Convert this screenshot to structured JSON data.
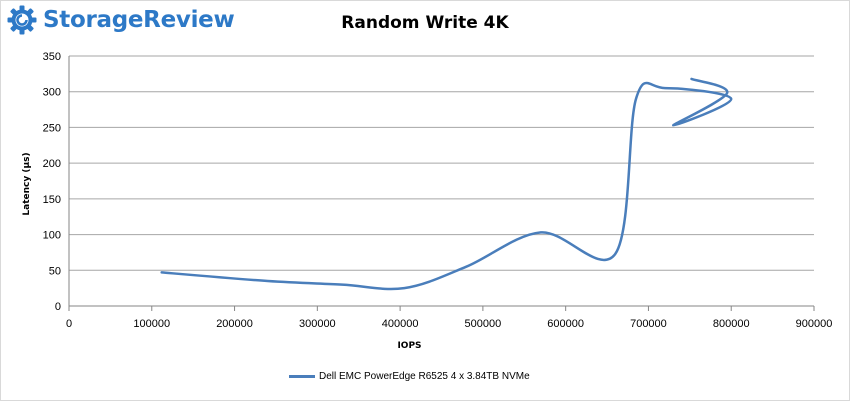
{
  "logo": {
    "text": "StorageReview",
    "icon": "storagereview-gear-icon",
    "color": "#2d79c7"
  },
  "chart_data": {
    "type": "line",
    "title": "Random Write 4K",
    "xlabel": "IOPS",
    "ylabel": "Latency (µs)",
    "xlim": [
      0,
      900000
    ],
    "ylim": [
      0,
      350
    ],
    "x_ticks": [
      0,
      100000,
      200000,
      300000,
      400000,
      500000,
      600000,
      700000,
      800000,
      900000
    ],
    "y_ticks": [
      0,
      50,
      100,
      150,
      200,
      250,
      300,
      350
    ],
    "grid": true,
    "legend_position": "bottom",
    "series": [
      {
        "name": "Dell EMC PowerEdge R6525 4 x 3.84TB NVMe",
        "color": "#4a7ebb",
        "points": [
          [
            112000,
            47
          ],
          [
            240000,
            35
          ],
          [
            330000,
            30
          ],
          [
            405000,
            25
          ],
          [
            480000,
            55
          ],
          [
            570000,
            103
          ],
          [
            660000,
            73
          ],
          [
            685000,
            290
          ],
          [
            720000,
            305
          ],
          [
            800000,
            290
          ],
          [
            730000,
            253
          ],
          [
            795000,
            298
          ],
          [
            752000,
            318
          ]
        ]
      }
    ]
  }
}
